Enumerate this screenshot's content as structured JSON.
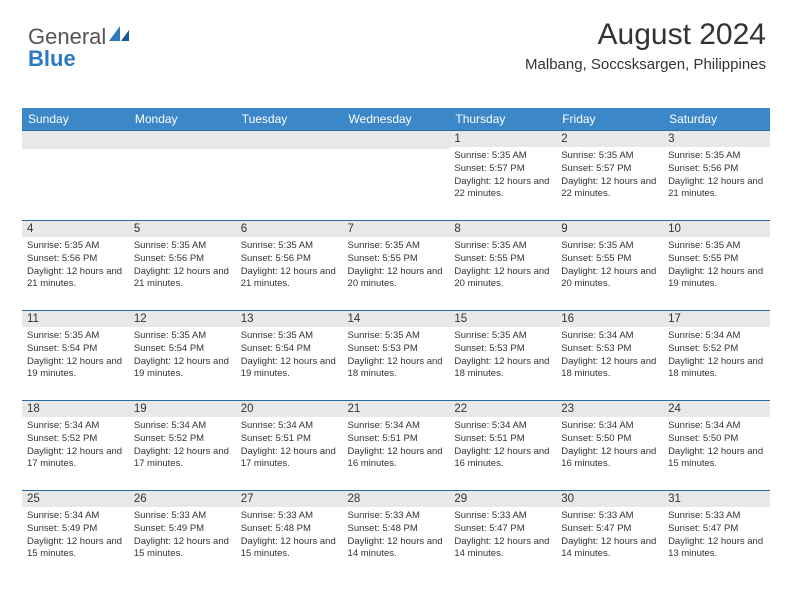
{
  "logo": {
    "part1": "General",
    "part2": "Blue"
  },
  "header": {
    "month_title": "August 2024",
    "location": "Malbang, Soccsksargen, Philippines"
  },
  "colors": {
    "header_bg": "#3b87c8",
    "header_text": "#ffffff",
    "daynum_bg": "#e8e8e8",
    "row_border": "#2c6aa5",
    "logo_gray": "#555555",
    "logo_blue": "#2c7ac0"
  },
  "day_labels": [
    "Sunday",
    "Monday",
    "Tuesday",
    "Wednesday",
    "Thursday",
    "Friday",
    "Saturday"
  ],
  "weeks": [
    [
      {
        "n": "",
        "sr": "",
        "ss": "",
        "dl": ""
      },
      {
        "n": "",
        "sr": "",
        "ss": "",
        "dl": ""
      },
      {
        "n": "",
        "sr": "",
        "ss": "",
        "dl": ""
      },
      {
        "n": "",
        "sr": "",
        "ss": "",
        "dl": ""
      },
      {
        "n": "1",
        "sr": "Sunrise: 5:35 AM",
        "ss": "Sunset: 5:57 PM",
        "dl": "Daylight: 12 hours and 22 minutes."
      },
      {
        "n": "2",
        "sr": "Sunrise: 5:35 AM",
        "ss": "Sunset: 5:57 PM",
        "dl": "Daylight: 12 hours and 22 minutes."
      },
      {
        "n": "3",
        "sr": "Sunrise: 5:35 AM",
        "ss": "Sunset: 5:56 PM",
        "dl": "Daylight: 12 hours and 21 minutes."
      }
    ],
    [
      {
        "n": "4",
        "sr": "Sunrise: 5:35 AM",
        "ss": "Sunset: 5:56 PM",
        "dl": "Daylight: 12 hours and 21 minutes."
      },
      {
        "n": "5",
        "sr": "Sunrise: 5:35 AM",
        "ss": "Sunset: 5:56 PM",
        "dl": "Daylight: 12 hours and 21 minutes."
      },
      {
        "n": "6",
        "sr": "Sunrise: 5:35 AM",
        "ss": "Sunset: 5:56 PM",
        "dl": "Daylight: 12 hours and 21 minutes."
      },
      {
        "n": "7",
        "sr": "Sunrise: 5:35 AM",
        "ss": "Sunset: 5:55 PM",
        "dl": "Daylight: 12 hours and 20 minutes."
      },
      {
        "n": "8",
        "sr": "Sunrise: 5:35 AM",
        "ss": "Sunset: 5:55 PM",
        "dl": "Daylight: 12 hours and 20 minutes."
      },
      {
        "n": "9",
        "sr": "Sunrise: 5:35 AM",
        "ss": "Sunset: 5:55 PM",
        "dl": "Daylight: 12 hours and 20 minutes."
      },
      {
        "n": "10",
        "sr": "Sunrise: 5:35 AM",
        "ss": "Sunset: 5:55 PM",
        "dl": "Daylight: 12 hours and 19 minutes."
      }
    ],
    [
      {
        "n": "11",
        "sr": "Sunrise: 5:35 AM",
        "ss": "Sunset: 5:54 PM",
        "dl": "Daylight: 12 hours and 19 minutes."
      },
      {
        "n": "12",
        "sr": "Sunrise: 5:35 AM",
        "ss": "Sunset: 5:54 PM",
        "dl": "Daylight: 12 hours and 19 minutes."
      },
      {
        "n": "13",
        "sr": "Sunrise: 5:35 AM",
        "ss": "Sunset: 5:54 PM",
        "dl": "Daylight: 12 hours and 19 minutes."
      },
      {
        "n": "14",
        "sr": "Sunrise: 5:35 AM",
        "ss": "Sunset: 5:53 PM",
        "dl": "Daylight: 12 hours and 18 minutes."
      },
      {
        "n": "15",
        "sr": "Sunrise: 5:35 AM",
        "ss": "Sunset: 5:53 PM",
        "dl": "Daylight: 12 hours and 18 minutes."
      },
      {
        "n": "16",
        "sr": "Sunrise: 5:34 AM",
        "ss": "Sunset: 5:53 PM",
        "dl": "Daylight: 12 hours and 18 minutes."
      },
      {
        "n": "17",
        "sr": "Sunrise: 5:34 AM",
        "ss": "Sunset: 5:52 PM",
        "dl": "Daylight: 12 hours and 18 minutes."
      }
    ],
    [
      {
        "n": "18",
        "sr": "Sunrise: 5:34 AM",
        "ss": "Sunset: 5:52 PM",
        "dl": "Daylight: 12 hours and 17 minutes."
      },
      {
        "n": "19",
        "sr": "Sunrise: 5:34 AM",
        "ss": "Sunset: 5:52 PM",
        "dl": "Daylight: 12 hours and 17 minutes."
      },
      {
        "n": "20",
        "sr": "Sunrise: 5:34 AM",
        "ss": "Sunset: 5:51 PM",
        "dl": "Daylight: 12 hours and 17 minutes."
      },
      {
        "n": "21",
        "sr": "Sunrise: 5:34 AM",
        "ss": "Sunset: 5:51 PM",
        "dl": "Daylight: 12 hours and 16 minutes."
      },
      {
        "n": "22",
        "sr": "Sunrise: 5:34 AM",
        "ss": "Sunset: 5:51 PM",
        "dl": "Daylight: 12 hours and 16 minutes."
      },
      {
        "n": "23",
        "sr": "Sunrise: 5:34 AM",
        "ss": "Sunset: 5:50 PM",
        "dl": "Daylight: 12 hours and 16 minutes."
      },
      {
        "n": "24",
        "sr": "Sunrise: 5:34 AM",
        "ss": "Sunset: 5:50 PM",
        "dl": "Daylight: 12 hours and 15 minutes."
      }
    ],
    [
      {
        "n": "25",
        "sr": "Sunrise: 5:34 AM",
        "ss": "Sunset: 5:49 PM",
        "dl": "Daylight: 12 hours and 15 minutes."
      },
      {
        "n": "26",
        "sr": "Sunrise: 5:33 AM",
        "ss": "Sunset: 5:49 PM",
        "dl": "Daylight: 12 hours and 15 minutes."
      },
      {
        "n": "27",
        "sr": "Sunrise: 5:33 AM",
        "ss": "Sunset: 5:48 PM",
        "dl": "Daylight: 12 hours and 15 minutes."
      },
      {
        "n": "28",
        "sr": "Sunrise: 5:33 AM",
        "ss": "Sunset: 5:48 PM",
        "dl": "Daylight: 12 hours and 14 minutes."
      },
      {
        "n": "29",
        "sr": "Sunrise: 5:33 AM",
        "ss": "Sunset: 5:47 PM",
        "dl": "Daylight: 12 hours and 14 minutes."
      },
      {
        "n": "30",
        "sr": "Sunrise: 5:33 AM",
        "ss": "Sunset: 5:47 PM",
        "dl": "Daylight: 12 hours and 14 minutes."
      },
      {
        "n": "31",
        "sr": "Sunrise: 5:33 AM",
        "ss": "Sunset: 5:47 PM",
        "dl": "Daylight: 12 hours and 13 minutes."
      }
    ]
  ]
}
